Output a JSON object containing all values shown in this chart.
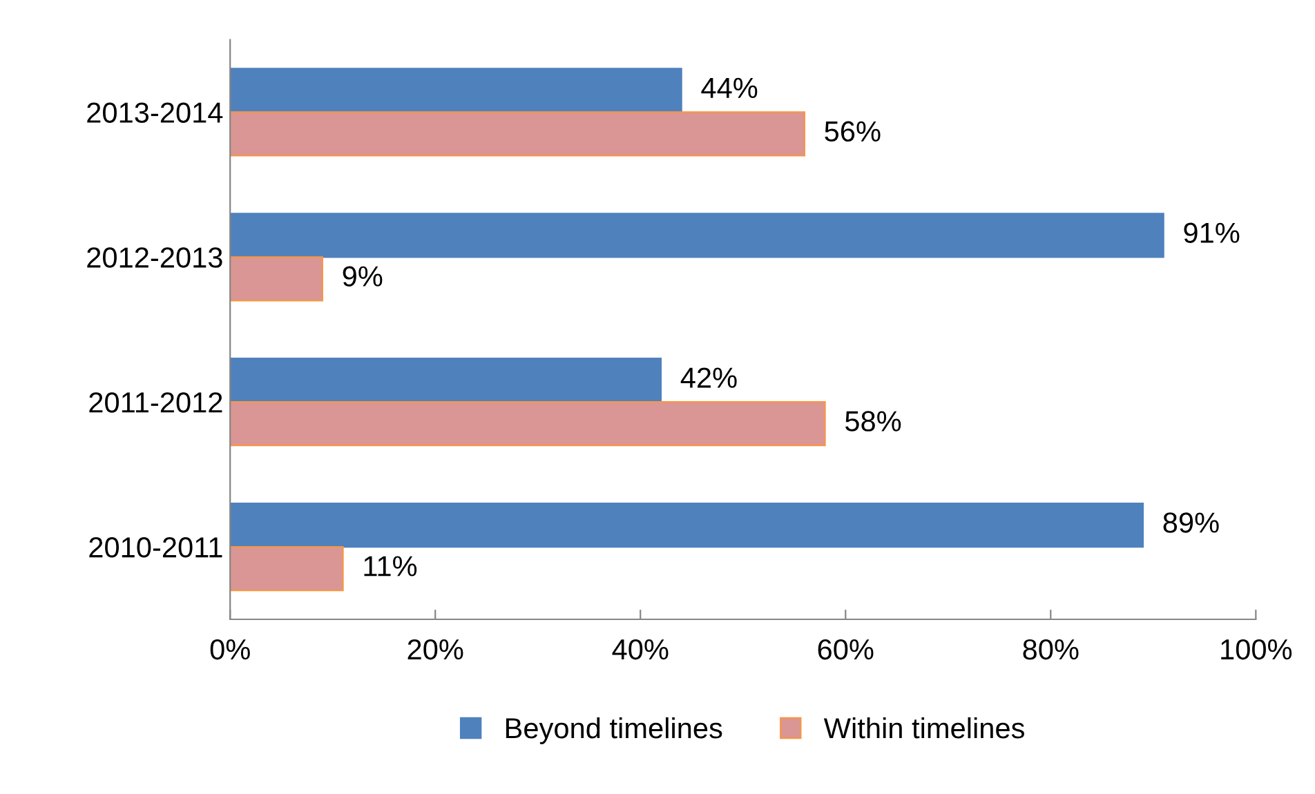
{
  "chart_data": {
    "type": "bar",
    "orientation": "horizontal",
    "categories": [
      "2013-2014",
      "2012-2013",
      "2011-2012",
      "2010-2011"
    ],
    "series": [
      {
        "name": "Beyond timelines",
        "color": "#4f81bd",
        "values": [
          44,
          91,
          42,
          89
        ],
        "value_labels": [
          "44%",
          "91%",
          "42%",
          "89%"
        ]
      },
      {
        "name": "Within timelines",
        "color": "#d99694",
        "values": [
          56,
          9,
          58,
          11
        ],
        "value_labels": [
          "56%",
          "9%",
          "58%",
          "11%"
        ]
      }
    ],
    "xlim": [
      0,
      100
    ],
    "xticks": [
      {
        "value": 0,
        "label": "0%"
      },
      {
        "value": 20,
        "label": "20%"
      },
      {
        "value": 40,
        "label": "40%"
      },
      {
        "value": 60,
        "label": "60%"
      },
      {
        "value": 80,
        "label": "80%"
      },
      {
        "value": 100,
        "label": "100%"
      }
    ],
    "grid": false,
    "legend": "bottom"
  }
}
